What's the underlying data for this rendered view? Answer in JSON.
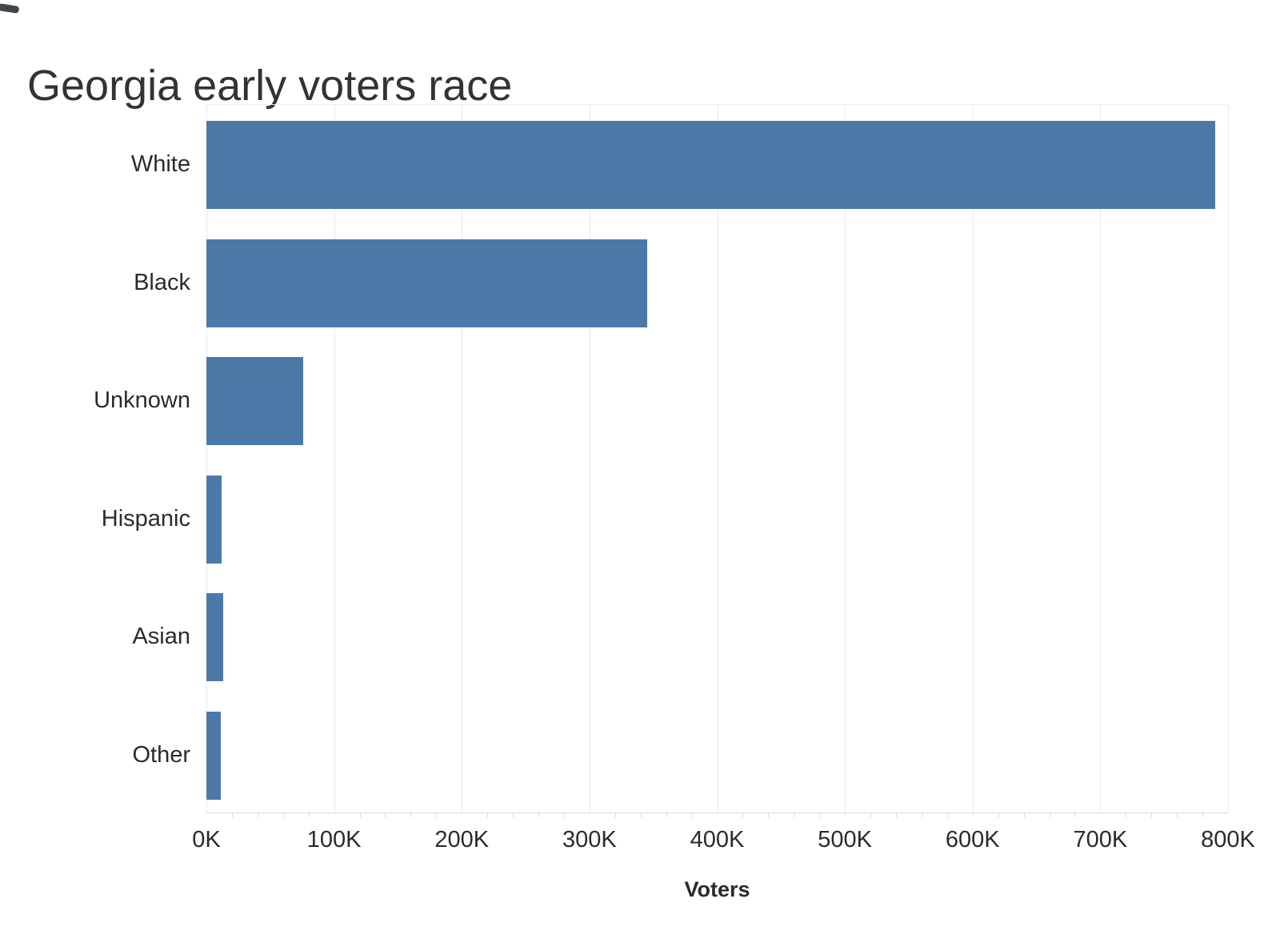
{
  "chart_data": {
    "type": "bar",
    "orientation": "horizontal",
    "title": "Georgia early voters race",
    "xlabel": "Voters",
    "ylabel": "",
    "categories": [
      "White",
      "Black",
      "Unknown",
      "Hispanic",
      "Asian",
      "Other"
    ],
    "values": [
      790000,
      345000,
      76000,
      12000,
      13000,
      11000
    ],
    "xlim": [
      0,
      800000
    ],
    "x_tick_values": [
      0,
      100000,
      200000,
      300000,
      400000,
      500000,
      600000,
      700000,
      800000
    ],
    "x_tick_labels": [
      "0K",
      "100K",
      "200K",
      "300K",
      "400K",
      "500K",
      "600K",
      "700K",
      "800K"
    ],
    "minor_tick_interval": 20000,
    "grid": true,
    "legend": "none",
    "bar_color": "#4d79a9",
    "gridline_color": "#e9e9e9",
    "axis_line_color": "#d9d9d9",
    "title_color": "#333333",
    "label_color": "#2b2b2b"
  }
}
